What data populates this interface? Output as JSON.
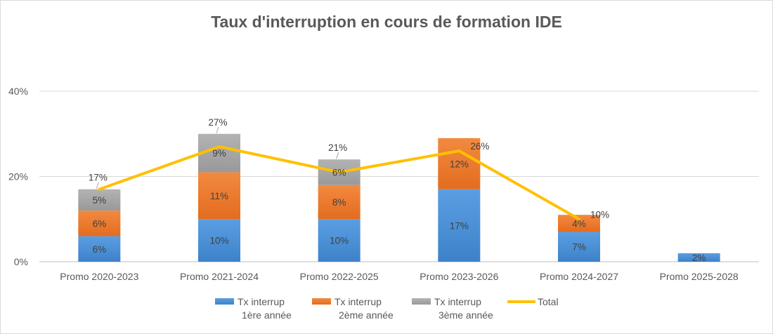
{
  "chart_data": {
    "type": "bar",
    "title": "Taux d'interruption en cours de formation IDE",
    "categories": [
      "Promo 2020-2023",
      "Promo 2021-2024",
      "Promo 2022-2025",
      "Promo 2023-2026",
      "Promo 2024-2027",
      "Promo 2025-2028"
    ],
    "ylim": [
      0,
      40
    ],
    "yticks": [
      0,
      20,
      40
    ],
    "ytick_labels": [
      "0%",
      "20%",
      "40%"
    ],
    "grid": true,
    "legend_position": "bottom",
    "series": [
      {
        "name_line1": "Tx interrup",
        "name_line2": "1ère année",
        "kind": "stacked-bar",
        "color": "#4a8fd4",
        "values": [
          6,
          10,
          10,
          17,
          7,
          2
        ],
        "labels": [
          "6%",
          "10%",
          "10%",
          "17%",
          "7%",
          "2%"
        ]
      },
      {
        "name_line1": "Tx interrup",
        "name_line2": "2ème année",
        "kind": "stacked-bar",
        "color": "#ec7a2c",
        "values": [
          6,
          11,
          8,
          12,
          4,
          0
        ],
        "labels": [
          "6%",
          "11%",
          "8%",
          "12%",
          "4%",
          ""
        ]
      },
      {
        "name_line1": "Tx interrup",
        "name_line2": "3ème année",
        "kind": "stacked-bar",
        "color": "#a5a5a5",
        "values": [
          5,
          9,
          6,
          0,
          0,
          0
        ],
        "labels": [
          "5%",
          "9%",
          "6%",
          "",
          "",
          ""
        ]
      },
      {
        "name_line1": "Total",
        "name_line2": "",
        "kind": "line",
        "color": "#ffc000",
        "values": [
          17,
          27,
          21,
          26,
          10,
          null
        ],
        "labels": [
          "17%",
          "27%",
          "21%",
          "26%",
          "10%",
          ""
        ]
      }
    ]
  }
}
